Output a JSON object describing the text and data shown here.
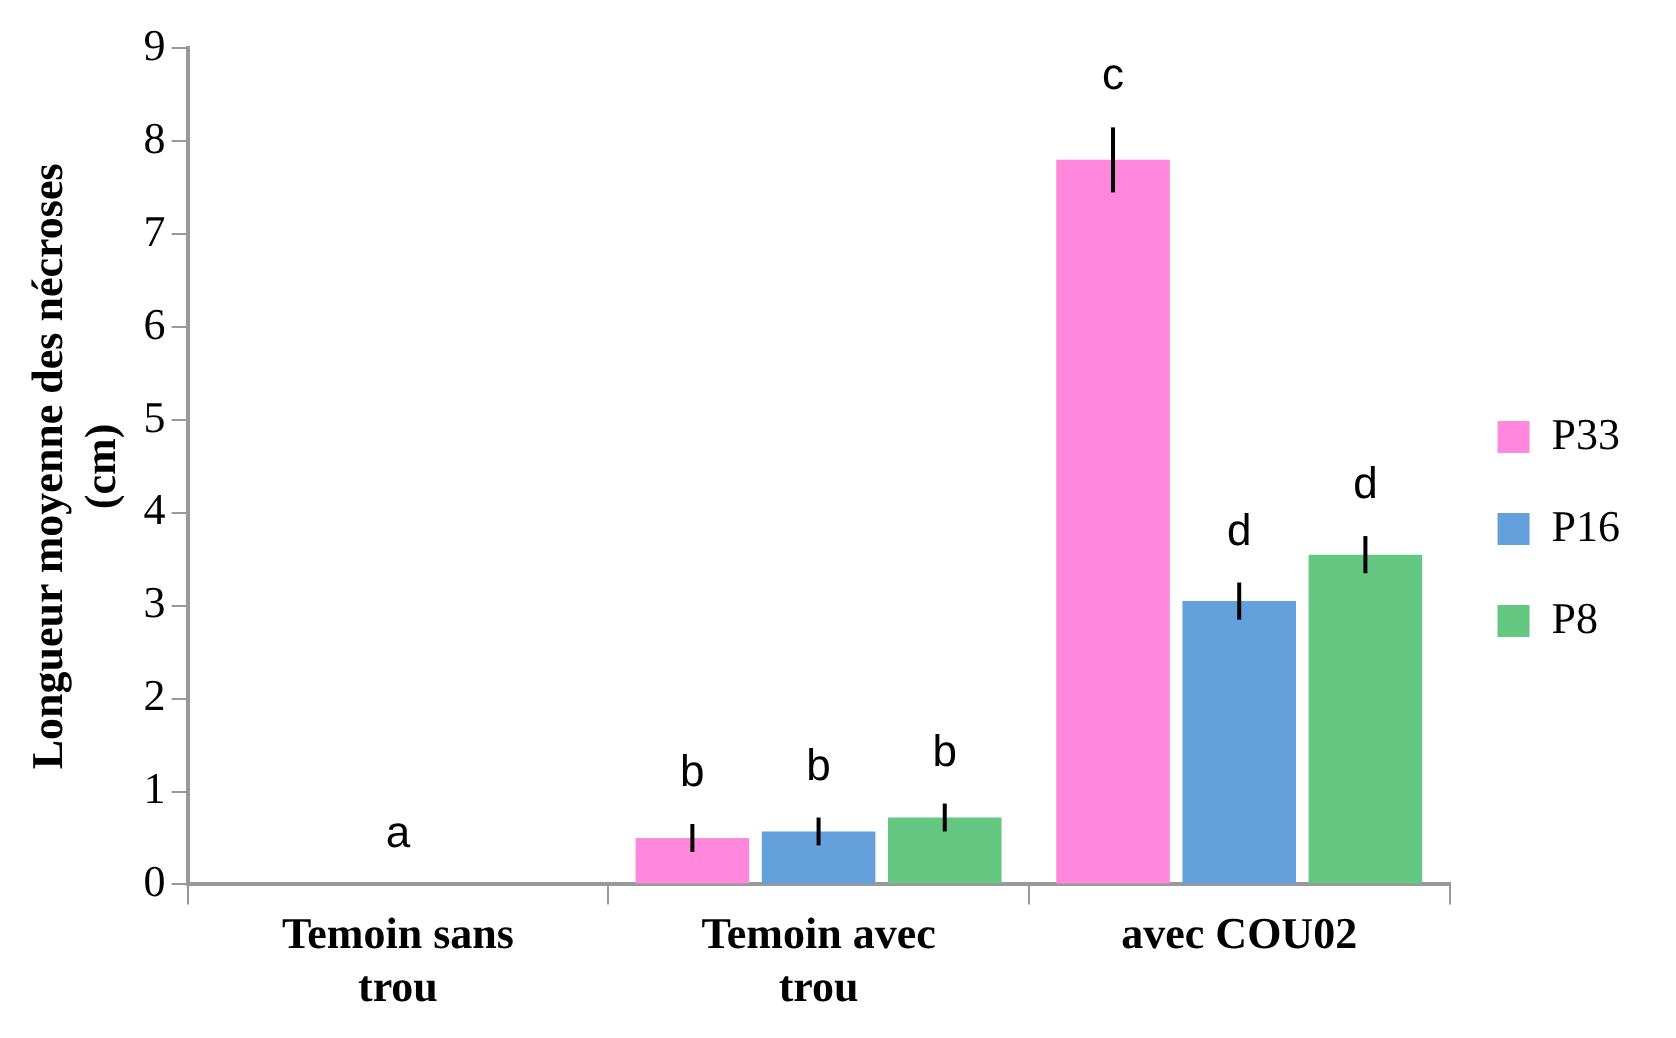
{
  "chart_data": {
    "type": "bar",
    "ylabel": "Longueur moyenne des nécroses (cm)",
    "categories": [
      "Temoin sans trou",
      "Temoin avec trou",
      "avec COU02"
    ],
    "series": [
      {
        "name": "P33",
        "color": "#ff88dd",
        "values": [
          0,
          0.5,
          7.8
        ],
        "errors": [
          null,
          0.15,
          0.35
        ],
        "value_labels": [
          null,
          "b",
          "c"
        ]
      },
      {
        "name": "P16",
        "color": "#64a0dc",
        "values": [
          0,
          0.57,
          3.05
        ],
        "errors": [
          null,
          0.15,
          0.2
        ],
        "value_labels": [
          "a",
          "b",
          "d"
        ]
      },
      {
        "name": "P8",
        "color": "#64c882",
        "values": [
          0,
          0.72,
          3.55
        ],
        "errors": [
          null,
          0.15,
          0.2
        ],
        "value_labels": [
          null,
          "b",
          "d"
        ]
      }
    ],
    "ylim": [
      0,
      9
    ],
    "yticks": [
      0,
      1,
      2,
      3,
      4,
      5,
      6,
      7,
      8,
      9
    ],
    "grid": false,
    "legend": "right"
  }
}
